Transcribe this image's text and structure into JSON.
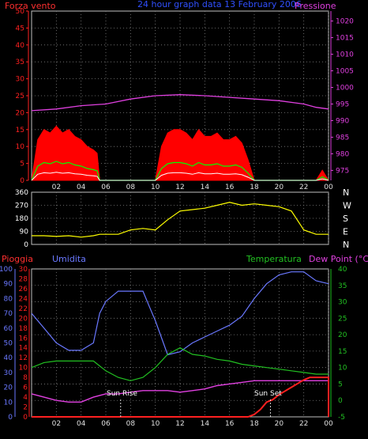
{
  "header": {
    "wind_title": "Forza vento",
    "date_title": "24 hour graph data  13 February 2006",
    "pressure_title": "Pressione",
    "rain_title": "Pioggia",
    "humidity_title": "Umidita",
    "temp_title": "Temperatura",
    "dew_title": "Dew Point (°C)",
    "sunrise_label": "Sun Rise",
    "sunset_label": "Sun Set"
  },
  "colors": {
    "wind": "#ff0000",
    "wind_gust": "#00ff00",
    "wind_avg": "#ffffff",
    "pressure": "#e040e0",
    "direction": "#ffff00",
    "rain": "#ff2020",
    "humidity": "#6a78ff",
    "temperature": "#22c122",
    "dewpoint": "#e040e0",
    "grid": "#808080"
  },
  "chart_data": [
    {
      "type": "line",
      "title": "24 hour graph data  13 February 2006",
      "x_ticks": [
        "02",
        "04",
        "06",
        "08",
        "10",
        "12",
        "14",
        "16",
        "18",
        "20",
        "22",
        "00"
      ],
      "left_axis": {
        "label": "Forza vento",
        "ticks": [
          0,
          5,
          10,
          15,
          20,
          25,
          30,
          35,
          40,
          45,
          50
        ],
        "ylim": [
          0,
          50
        ]
      },
      "right_axis": {
        "label": "Pressione",
        "ticks": [
          975,
          980,
          985,
          990,
          995,
          1000,
          1005,
          1010,
          1015,
          1020
        ],
        "ylim": [
          972,
          1023
        ]
      },
      "series": [
        {
          "name": "Forza vento",
          "axis": "left",
          "x": [
            0,
            0.5,
            1,
            1.5,
            2,
            2.5,
            3,
            3.5,
            4,
            4.5,
            5,
            5.3,
            5.5,
            6,
            7,
            8,
            9,
            10,
            10.5,
            11,
            11.5,
            12,
            12.5,
            13,
            13.5,
            14,
            14.5,
            15,
            15.5,
            16,
            16.5,
            17,
            17.5,
            18,
            19,
            20,
            21,
            22,
            23,
            23.5,
            24
          ],
          "values": [
            0,
            12,
            15,
            14,
            16,
            14,
            15,
            13,
            12,
            10,
            9,
            8,
            0,
            0,
            0,
            0,
            0,
            0,
            10,
            14,
            15,
            15,
            14,
            12,
            15,
            13,
            13,
            14,
            12,
            12,
            13,
            11,
            6,
            0,
            0,
            0,
            0,
            0,
            0,
            3,
            0
          ]
        },
        {
          "name": "Pressione",
          "axis": "right",
          "x": [
            0,
            2,
            4,
            6,
            8,
            10,
            12,
            14,
            16,
            18,
            20,
            22,
            23,
            24
          ],
          "values": [
            993,
            993.5,
            994.5,
            995,
            996.5,
            997.5,
            997.8,
            997.5,
            997,
            996.5,
            996,
            995,
            994,
            993.5
          ]
        }
      ]
    },
    {
      "type": "scatter",
      "x_ticks": [
        "02",
        "04",
        "06",
        "08",
        "10",
        "12",
        "14",
        "16",
        "18",
        "20",
        "22",
        "00"
      ],
      "left_axis": {
        "ticks": [
          0,
          90,
          180,
          270,
          360
        ],
        "ylim": [
          0,
          360
        ]
      },
      "right_axis": {
        "ticks": [
          "N",
          "W",
          "S",
          "E",
          "N"
        ]
      },
      "series": [
        {
          "axis": "left",
          "x": [
            0,
            1,
            2,
            3,
            4,
            5,
            5.5,
            6,
            7,
            8,
            9,
            10,
            11,
            12,
            13,
            14,
            15,
            16,
            17,
            18,
            19,
            20,
            21,
            22,
            23,
            24
          ],
          "values": [
            60,
            60,
            55,
            60,
            50,
            60,
            70,
            70,
            70,
            100,
            110,
            100,
            170,
            230,
            240,
            250,
            270,
            290,
            270,
            280,
            270,
            260,
            230,
            100,
            70,
            70
          ]
        }
      ]
    },
    {
      "type": "line",
      "x_ticks": [
        "02",
        "04",
        "06",
        "08",
        "10",
        "12",
        "14",
        "16",
        "18",
        "20",
        "22",
        "00"
      ],
      "axes": {
        "humidity": {
          "label": "Umidita",
          "ticks": [
            0,
            10,
            20,
            30,
            40,
            50,
            60,
            70,
            80,
            90,
            100
          ],
          "ylim": [
            0,
            100
          ]
        },
        "rain": {
          "label": "Pioggia",
          "ticks": [
            0,
            2,
            4,
            6,
            8,
            10,
            12,
            14,
            16,
            18,
            20,
            22,
            24,
            26,
            28,
            30
          ],
          "ylim": [
            0,
            30
          ]
        },
        "temperature": {
          "label": "Temperatura",
          "ticks": [
            -5,
            0,
            5,
            10,
            15,
            20,
            25,
            30,
            35,
            40
          ],
          "ylim": [
            -5,
            40
          ]
        }
      },
      "series": [
        {
          "name": "Umidita",
          "axis": "humidity",
          "x": [
            0,
            1,
            2,
            3,
            4,
            5,
            5.5,
            6,
            7,
            8,
            9,
            9.5,
            10,
            11,
            12,
            13,
            14,
            15,
            16,
            17,
            18,
            19,
            20,
            21,
            22,
            23,
            24
          ],
          "values": [
            70,
            60,
            50,
            45,
            45,
            50,
            70,
            78,
            85,
            85,
            85,
            75,
            65,
            42,
            44,
            50,
            54,
            58,
            62,
            68,
            80,
            90,
            96,
            98,
            98,
            92,
            90
          ]
        },
        {
          "name": "Temperatura",
          "axis": "temperature",
          "x": [
            0,
            1,
            2,
            3,
            4,
            5,
            6,
            7,
            8,
            9,
            10,
            11,
            12,
            13,
            14,
            15,
            16,
            17,
            18,
            19,
            20,
            21,
            22,
            23,
            24
          ],
          "values": [
            10,
            11.5,
            12,
            12,
            12,
            12,
            9,
            7,
            6,
            7,
            10,
            14,
            16,
            14,
            13.5,
            12.5,
            12,
            11,
            10.5,
            10,
            9.5,
            9,
            8.5,
            8,
            8
          ]
        },
        {
          "name": "Dew Point",
          "axis": "temperature",
          "x": [
            0,
            1,
            2,
            3,
            4,
            5,
            6,
            7,
            8,
            9,
            10,
            11,
            12,
            13,
            14,
            15,
            16,
            17,
            18,
            19,
            20,
            21,
            22,
            23,
            24
          ],
          "values": [
            2,
            1,
            0,
            -0.5,
            -0.5,
            1,
            2,
            2,
            2.5,
            3,
            3,
            3,
            2.5,
            3,
            3.5,
            4.5,
            5,
            5.5,
            6,
            6,
            6,
            6,
            6,
            6,
            6
          ]
        },
        {
          "name": "Pioggia",
          "axis": "rain",
          "x": [
            0,
            17.5,
            18,
            18.5,
            19,
            19.5,
            20,
            21,
            22,
            22.5,
            23,
            24,
            24.1
          ],
          "values": [
            0,
            0,
            0.5,
            1.5,
            3,
            3.5,
            4.5,
            6,
            7.5,
            8,
            8,
            8,
            0
          ]
        }
      ],
      "annotations": [
        {
          "text": "Sun Rise",
          "x": 7.2
        },
        {
          "text": "Sun Set",
          "x": 19.3
        }
      ]
    }
  ]
}
